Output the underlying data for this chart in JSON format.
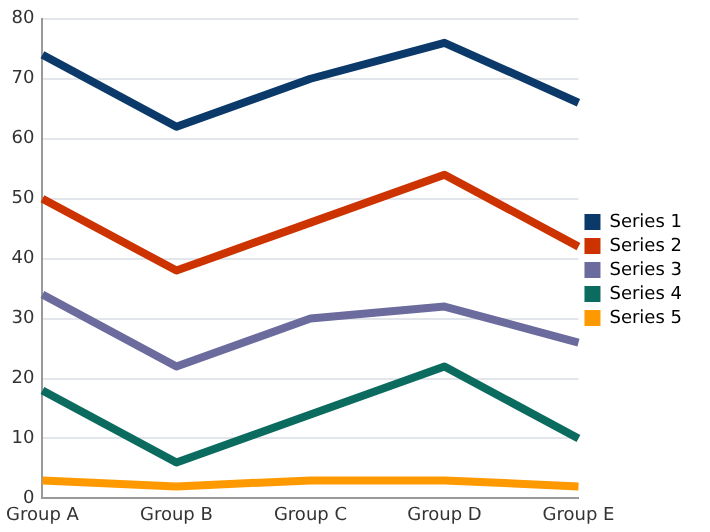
{
  "chart_data": {
    "type": "line",
    "categories": [
      "Group A",
      "Group B",
      "Group C",
      "Group D",
      "Group E"
    ],
    "series": [
      {
        "name": "Series 1",
        "color": "#0b3a6a",
        "values": [
          74,
          62,
          70,
          76,
          66
        ]
      },
      {
        "name": "Series 2",
        "color": "#cc3300",
        "values": [
          50,
          38,
          46,
          54,
          42
        ]
      },
      {
        "name": "Series 3",
        "color": "#6b6b9e",
        "values": [
          34,
          22,
          30,
          32,
          26
        ]
      },
      {
        "name": "Series 4",
        "color": "#0b6b5e",
        "values": [
          18,
          6,
          14,
          22,
          10
        ]
      },
      {
        "name": "Series 5",
        "color": "#ff9900",
        "values": [
          3,
          2,
          3,
          3,
          2
        ]
      }
    ],
    "ylim": [
      0,
      80
    ],
    "yticks": [
      0,
      10,
      20,
      30,
      40,
      50,
      60,
      70,
      80
    ],
    "grid": "y",
    "legend": "right",
    "marker": "none",
    "line_style": "solid"
  }
}
